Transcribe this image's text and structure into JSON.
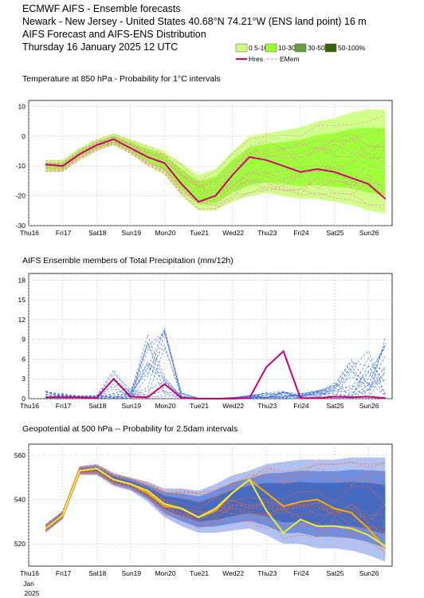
{
  "header": {
    "line1": "ECMWF AIFS - Ensemble forecasts",
    "line2": "Newark - New Jersey - United States 40.68°N 74.21°W (ENS land point) 16 m",
    "line3": "AIFS Forecast and AIFS-ENS Distribution",
    "line4": "Thursday 16 January 2025 12 UTC"
  },
  "legend": {
    "boxes": [
      {
        "label": "0.5-10%",
        "color": "#ccff80"
      },
      {
        "label": "10-30%",
        "color": "#99ff33"
      },
      {
        "label": "30-50%",
        "color": "#66a03a"
      },
      {
        "label": "50-100%",
        "color": "#336600"
      }
    ],
    "lines": [
      {
        "label": "Hres",
        "color": "#cc0077"
      },
      {
        "label": "EMem",
        "color": "#ff6699"
      }
    ]
  },
  "days": [
    "Thu16",
    "Fri17",
    "Sat18",
    "Sun19",
    "Mon20",
    "Tue21",
    "Wed22",
    "Thu23",
    "Fri24",
    "Sat25",
    "Sun26"
  ],
  "weekend_color": "#cc0000",
  "x_extra": [
    "Jan",
    "2025"
  ],
  "chart_data": [
    {
      "type": "line",
      "title": "Temperature at 850 hPa - Probability for 1°C intervals",
      "ylim": [
        -30,
        12
      ],
      "yticks": [
        -30,
        -20,
        -10,
        0,
        10
      ],
      "x": [
        0.5,
        1,
        1.5,
        2,
        2.5,
        3,
        3.5,
        4,
        4.5,
        5,
        5.5,
        6,
        6.5,
        7,
        7.5,
        8,
        8.5,
        9,
        9.5,
        10,
        10.5
      ],
      "series": [
        {
          "name": "Hres",
          "color": "#cc0077",
          "values": [
            -9.5,
            -10,
            -6,
            -3,
            -1,
            -4,
            -7,
            -9,
            -16,
            -22,
            -20,
            -13,
            -7,
            -8,
            -10,
            -12,
            -11,
            -12,
            -14,
            -16,
            -21
          ]
        }
      ],
      "band_low": [
        -12,
        -12,
        -8,
        -5,
        -3,
        -6,
        -10,
        -13,
        -20,
        -25,
        -25,
        -22,
        -20,
        -19,
        -20,
        -21,
        -21,
        -22,
        -23,
        -25,
        -26
      ],
      "band_high": [
        -8,
        -8,
        -4,
        -1,
        1,
        -1,
        -3,
        -5,
        -9,
        -13,
        -11,
        -5,
        0,
        1,
        2,
        3,
        5,
        6,
        8,
        9,
        9
      ],
      "line_color": "#ff77bb",
      "band_colors": [
        "#ccff80",
        "#99ff33"
      ]
    },
    {
      "type": "line",
      "title": "AIFS Ensemble members of Total Precipitation (mm/12h)",
      "ylim": [
        0,
        19
      ],
      "yticks": [
        0,
        3,
        6,
        9,
        12,
        15,
        18
      ],
      "x": [
        0.5,
        1,
        1.5,
        2,
        2.5,
        3,
        3.5,
        4,
        4.5,
        5,
        5.5,
        6,
        6.5,
        7,
        7.5,
        8,
        8.5,
        9,
        9.5,
        10,
        10.5
      ],
      "series": [
        {
          "name": "Hres",
          "color": "#cc0077",
          "values": [
            0.2,
            0.2,
            0.2,
            0.1,
            3,
            0.3,
            0.2,
            2.2,
            0.1,
            0,
            0,
            0,
            0.1,
            4.8,
            7.2,
            0.1,
            0.1,
            0.3,
            0.2,
            0.3,
            0.1
          ]
        }
      ],
      "member_peaks": [
        1.2,
        0.8,
        0.5,
        0.6,
        4.5,
        1.5,
        10.5,
        11.5,
        1.0,
        0.1,
        0.1,
        0.2,
        0.5,
        1.0,
        1.2,
        0.8,
        1.5,
        2.5,
        6.0,
        9.5,
        10.5
      ],
      "member_color": "#3366dd"
    },
    {
      "type": "line",
      "title": "Geopotential at 500 hPa -- Probability for 2.5dam intervals",
      "ylim": [
        510,
        565
      ],
      "yticks": [
        520,
        540,
        560
      ],
      "x": [
        0.5,
        1,
        1.5,
        2,
        2.5,
        3,
        3.5,
        4,
        4.5,
        5,
        5.5,
        6,
        6.5,
        7,
        7.5,
        8,
        8.5,
        9,
        9.5,
        10,
        10.5
      ],
      "series": [
        {
          "name": "Hres",
          "color": "#ffaa00",
          "values": [
            527,
            533,
            553,
            554,
            549,
            547,
            543,
            537,
            536,
            532,
            535,
            543,
            549,
            543,
            537,
            539,
            540,
            536,
            534,
            527,
            518
          ]
        },
        {
          "name": "Ens mean",
          "color": "#eeee33",
          "values": [
            527,
            533,
            553,
            554,
            549,
            547,
            544,
            538,
            536,
            532,
            536,
            543,
            549,
            535,
            525,
            531,
            528,
            528,
            527,
            524,
            519
          ]
        }
      ],
      "band_low": [
        525,
        531,
        551,
        551,
        546,
        544,
        539,
        532,
        528,
        525,
        525,
        526,
        527,
        524,
        520,
        520,
        518,
        518,
        517,
        515,
        512
      ],
      "band_high": [
        529,
        535,
        555,
        556,
        552,
        550,
        548,
        545,
        545,
        544,
        547,
        551,
        553,
        556,
        557,
        558,
        558,
        558,
        559,
        559,
        559
      ],
      "line_color": "#ff6633",
      "band_colors": [
        "#aabbee",
        "#6688dd",
        "#4466bb"
      ]
    }
  ]
}
